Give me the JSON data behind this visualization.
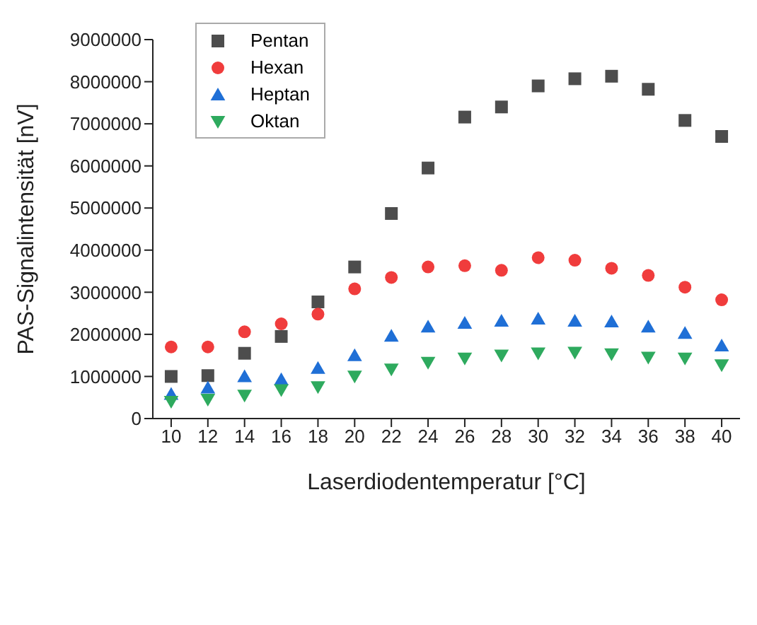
{
  "chart_data": {
    "type": "scatter",
    "xlabel": "Laserdiodentemperatur [°C]",
    "ylabel": "PAS-Signalintensität [nV]",
    "x": [
      10,
      12,
      14,
      16,
      18,
      20,
      22,
      24,
      26,
      28,
      30,
      32,
      34,
      36,
      38,
      40
    ],
    "xlim": [
      9,
      41
    ],
    "xticks": [
      10,
      12,
      14,
      16,
      18,
      20,
      22,
      24,
      26,
      28,
      30,
      32,
      34,
      36,
      38,
      40
    ],
    "ylim": [
      0,
      9000000
    ],
    "yticks": [
      0,
      1000000,
      2000000,
      3000000,
      4000000,
      5000000,
      6000000,
      7000000,
      8000000,
      9000000
    ],
    "grid": false,
    "legend": "top left",
    "series": [
      {
        "name": "Pentan",
        "color": "#4d4d4d",
        "marker": "square",
        "values": [
          1000000,
          1020000,
          1550000,
          1950000,
          2770000,
          3600000,
          4870000,
          5950000,
          7160000,
          7400000,
          7900000,
          8070000,
          8130000,
          7820000,
          7080000,
          6700000
        ]
      },
      {
        "name": "Hexan",
        "color": "#f03c3c",
        "marker": "circle",
        "values": [
          1700000,
          1700000,
          2060000,
          2250000,
          2480000,
          3080000,
          3350000,
          3600000,
          3630000,
          3520000,
          3820000,
          3760000,
          3570000,
          3400000,
          3120000,
          2820000
        ]
      },
      {
        "name": "Heptan",
        "color": "#1f6fd6",
        "marker": "triangle",
        "values": [
          580000,
          730000,
          1000000,
          930000,
          1200000,
          1500000,
          1960000,
          2180000,
          2270000,
          2320000,
          2370000,
          2320000,
          2300000,
          2180000,
          2030000,
          1730000
        ]
      },
      {
        "name": "Oktan",
        "color": "#2eaa5e",
        "marker": "triangle-down",
        "values": [
          400000,
          450000,
          550000,
          680000,
          750000,
          1000000,
          1170000,
          1330000,
          1430000,
          1500000,
          1550000,
          1570000,
          1530000,
          1450000,
          1430000,
          1270000
        ]
      }
    ]
  }
}
